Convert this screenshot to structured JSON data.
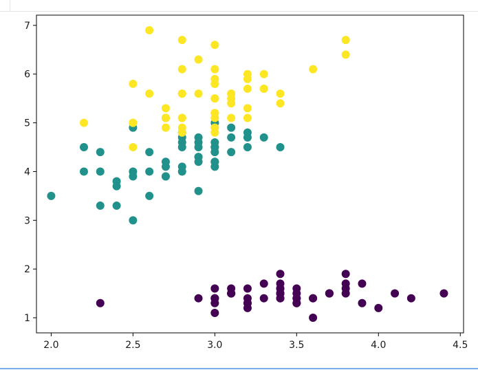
{
  "window": {
    "has_top_divider": true,
    "has_bottom_accent": true
  },
  "chart_data": {
    "type": "scatter",
    "title": "",
    "xlabel": "",
    "ylabel": "",
    "xlim": [
      1.91,
      4.52
    ],
    "ylim": [
      0.69,
      7.21
    ],
    "xticks": [
      "2.0",
      "2.5",
      "3.0",
      "3.5",
      "4.0",
      "4.5"
    ],
    "yticks": [
      "1",
      "2",
      "3",
      "4",
      "5",
      "6",
      "7"
    ],
    "grid": false,
    "legend": "none",
    "series": [
      {
        "color": "#440154",
        "points": [
          [
            3.5,
            1.4
          ],
          [
            3.0,
            1.4
          ],
          [
            3.2,
            1.3
          ],
          [
            3.1,
            1.5
          ],
          [
            3.6,
            1.4
          ],
          [
            3.9,
            1.7
          ],
          [
            3.4,
            1.4
          ],
          [
            3.4,
            1.5
          ],
          [
            2.9,
            1.4
          ],
          [
            3.1,
            1.5
          ],
          [
            3.7,
            1.5
          ],
          [
            3.4,
            1.6
          ],
          [
            3.0,
            1.4
          ],
          [
            3.0,
            1.1
          ],
          [
            4.0,
            1.2
          ],
          [
            4.4,
            1.5
          ],
          [
            3.9,
            1.3
          ],
          [
            3.5,
            1.4
          ],
          [
            3.8,
            1.7
          ],
          [
            3.8,
            1.5
          ],
          [
            3.4,
            1.7
          ],
          [
            3.7,
            1.5
          ],
          [
            3.6,
            1.0
          ],
          [
            3.3,
            1.7
          ],
          [
            3.4,
            1.9
          ],
          [
            3.0,
            1.6
          ],
          [
            3.4,
            1.6
          ],
          [
            3.5,
            1.5
          ],
          [
            3.4,
            1.4
          ],
          [
            3.2,
            1.6
          ],
          [
            3.1,
            1.6
          ],
          [
            3.4,
            1.5
          ],
          [
            4.1,
            1.5
          ],
          [
            4.2,
            1.4
          ],
          [
            3.1,
            1.5
          ],
          [
            3.2,
            1.2
          ],
          [
            3.5,
            1.3
          ],
          [
            3.6,
            1.4
          ],
          [
            3.0,
            1.3
          ],
          [
            3.4,
            1.5
          ],
          [
            3.5,
            1.3
          ],
          [
            2.3,
            1.3
          ],
          [
            3.2,
            1.3
          ],
          [
            3.5,
            1.6
          ],
          [
            3.8,
            1.9
          ],
          [
            3.0,
            1.4
          ],
          [
            3.8,
            1.6
          ],
          [
            3.2,
            1.4
          ],
          [
            3.7,
            1.5
          ],
          [
            3.3,
            1.4
          ]
        ]
      },
      {
        "color": "#21918c",
        "points": [
          [
            3.2,
            4.7
          ],
          [
            3.2,
            4.5
          ],
          [
            3.1,
            4.9
          ],
          [
            2.3,
            4.0
          ],
          [
            2.8,
            4.6
          ],
          [
            2.8,
            4.5
          ],
          [
            3.3,
            4.7
          ],
          [
            2.4,
            3.3
          ],
          [
            2.9,
            4.6
          ],
          [
            2.7,
            3.9
          ],
          [
            2.0,
            3.5
          ],
          [
            3.0,
            4.2
          ],
          [
            2.2,
            4.0
          ],
          [
            2.9,
            4.7
          ],
          [
            2.9,
            3.6
          ],
          [
            3.1,
            4.4
          ],
          [
            3.0,
            4.5
          ],
          [
            2.7,
            4.1
          ],
          [
            2.2,
            4.5
          ],
          [
            2.5,
            3.9
          ],
          [
            3.2,
            4.8
          ],
          [
            2.8,
            4.0
          ],
          [
            2.5,
            4.9
          ],
          [
            2.8,
            4.7
          ],
          [
            2.9,
            4.3
          ],
          [
            3.0,
            4.4
          ],
          [
            2.8,
            4.8
          ],
          [
            3.0,
            5.0
          ],
          [
            2.9,
            4.5
          ],
          [
            2.6,
            3.5
          ],
          [
            2.4,
            3.8
          ],
          [
            2.4,
            3.7
          ],
          [
            2.7,
            3.9
          ],
          [
            2.7,
            5.1
          ],
          [
            3.0,
            4.5
          ],
          [
            3.4,
            4.5
          ],
          [
            3.1,
            4.7
          ],
          [
            2.3,
            4.4
          ],
          [
            3.0,
            4.1
          ],
          [
            2.5,
            4.0
          ],
          [
            2.6,
            4.4
          ],
          [
            3.0,
            4.6
          ],
          [
            2.6,
            4.0
          ],
          [
            2.3,
            3.3
          ],
          [
            2.7,
            4.2
          ],
          [
            3.0,
            4.2
          ],
          [
            2.9,
            4.2
          ],
          [
            2.9,
            4.3
          ],
          [
            2.5,
            3.0
          ],
          [
            2.8,
            4.1
          ]
        ]
      },
      {
        "color": "#fde725",
        "points": [
          [
            3.3,
            6.0
          ],
          [
            2.7,
            5.1
          ],
          [
            3.0,
            5.9
          ],
          [
            2.9,
            5.6
          ],
          [
            3.0,
            5.8
          ],
          [
            3.0,
            6.6
          ],
          [
            2.5,
            4.5
          ],
          [
            2.9,
            6.3
          ],
          [
            2.5,
            5.8
          ],
          [
            3.6,
            6.1
          ],
          [
            3.2,
            5.1
          ],
          [
            2.7,
            5.3
          ],
          [
            3.0,
            5.5
          ],
          [
            2.5,
            5.0
          ],
          [
            2.8,
            5.1
          ],
          [
            3.2,
            5.3
          ],
          [
            3.0,
            5.5
          ],
          [
            3.8,
            6.7
          ],
          [
            2.6,
            6.9
          ],
          [
            2.2,
            5.0
          ],
          [
            3.2,
            5.7
          ],
          [
            2.8,
            4.9
          ],
          [
            2.8,
            6.7
          ],
          [
            2.7,
            4.9
          ],
          [
            3.3,
            5.7
          ],
          [
            3.2,
            6.0
          ],
          [
            2.8,
            4.8
          ],
          [
            3.0,
            4.9
          ],
          [
            2.8,
            5.6
          ],
          [
            3.0,
            5.8
          ],
          [
            2.8,
            6.1
          ],
          [
            3.8,
            6.4
          ],
          [
            2.8,
            5.6
          ],
          [
            2.8,
            5.1
          ],
          [
            2.6,
            5.6
          ],
          [
            3.0,
            6.1
          ],
          [
            3.4,
            5.6
          ],
          [
            3.1,
            5.5
          ],
          [
            3.0,
            4.8
          ],
          [
            3.1,
            5.4
          ],
          [
            3.1,
            5.6
          ],
          [
            3.1,
            5.1
          ],
          [
            2.7,
            5.1
          ],
          [
            3.2,
            5.9
          ],
          [
            3.3,
            5.7
          ],
          [
            3.0,
            5.2
          ],
          [
            2.5,
            5.0
          ],
          [
            3.0,
            5.2
          ],
          [
            3.4,
            5.4
          ],
          [
            3.0,
            5.1
          ]
        ]
      }
    ]
  }
}
